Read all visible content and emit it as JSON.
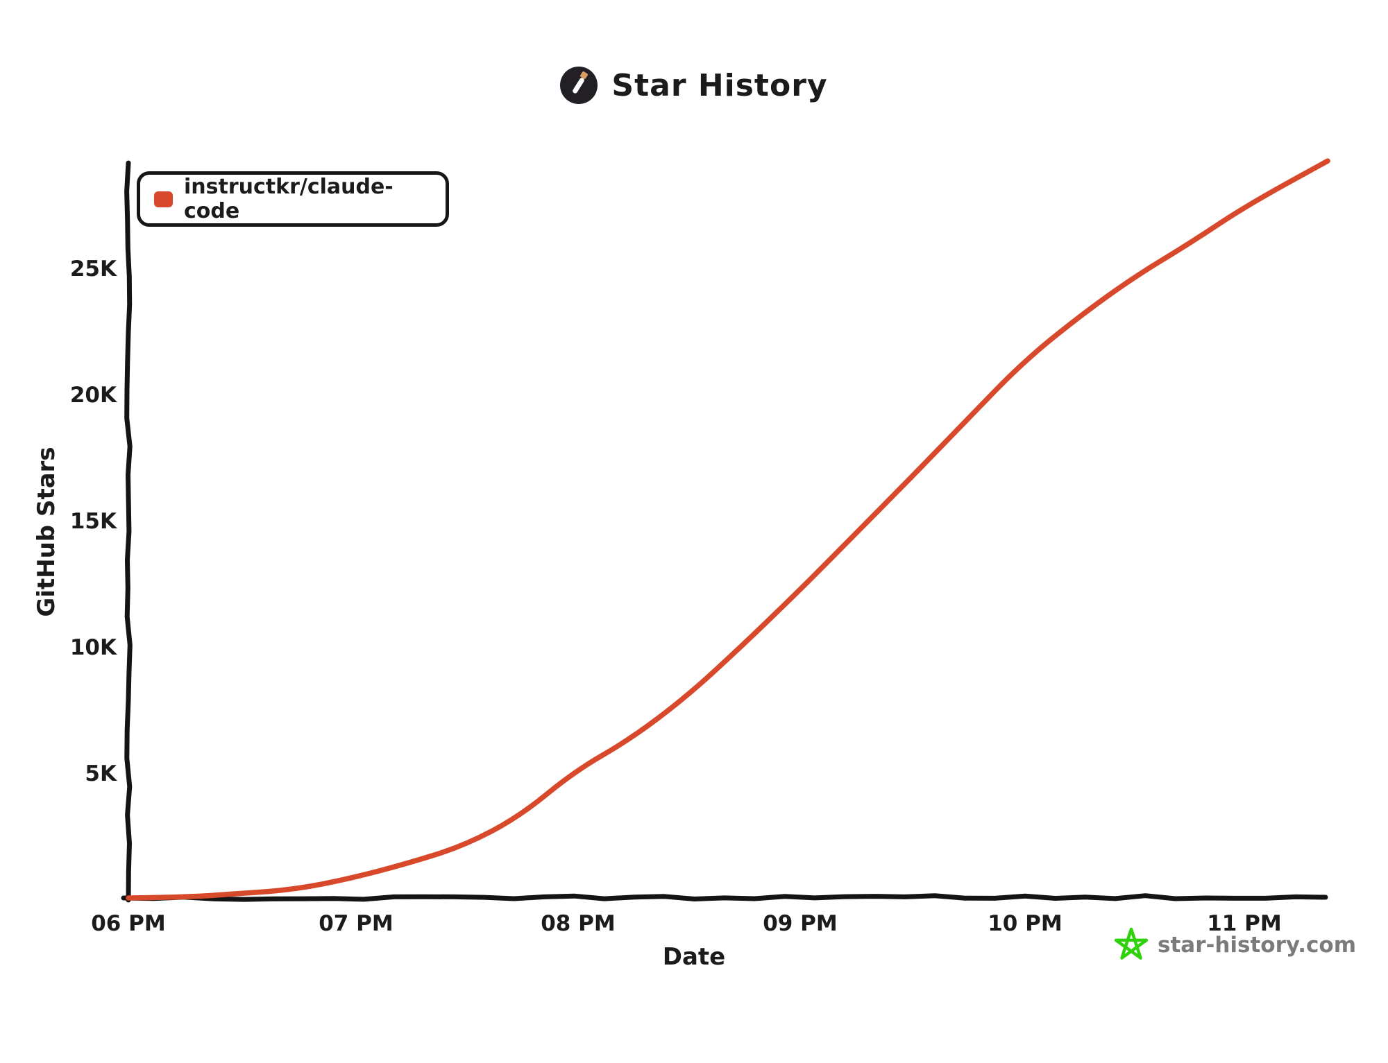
{
  "header": {
    "title": "Star History",
    "logo_icon": "pencil-wand-icon",
    "logo_bg_color": "#232025",
    "logo_tip_color": "#d99e63"
  },
  "legend": {
    "series_label": "instructkr/claude-code",
    "marker_color": "#d8492b"
  },
  "axes": {
    "y_title": "GitHub Stars",
    "x_title": "Date"
  },
  "watermark": {
    "text": "star-history.com",
    "star_icon_color": "#2ed10a",
    "text_color": "#7b7b7b"
  },
  "chart_data": {
    "type": "line",
    "title": "Star History",
    "xlabel": "Date",
    "ylabel": "GitHub Stars",
    "grid": false,
    "legend_position": "top-left",
    "x_tick_labels": [
      "06 PM",
      "07 PM",
      "08 PM",
      "09 PM",
      "10 PM",
      "11 PM"
    ],
    "y_tick_labels": [
      "5K",
      "10K",
      "15K",
      "20K",
      "25K"
    ],
    "y_tick_values": [
      5000,
      10000,
      15000,
      20000,
      25000
    ],
    "ylim": [
      0,
      29500
    ],
    "x_unit": "minutes after 06 PM",
    "xlim_minutes": [
      0,
      322
    ],
    "series": [
      {
        "name": "instructkr/claude-code",
        "color": "#d8492b",
        "points_minutes_stars": [
          [
            0,
            0
          ],
          [
            15,
            50
          ],
          [
            30,
            150
          ],
          [
            45,
            380
          ],
          [
            60,
            800
          ],
          [
            75,
            1400
          ],
          [
            90,
            2100
          ],
          [
            105,
            3200
          ],
          [
            120,
            5000
          ],
          [
            135,
            6300
          ],
          [
            150,
            8000
          ],
          [
            165,
            10000
          ],
          [
            180,
            12200
          ],
          [
            195,
            14400
          ],
          [
            210,
            16600
          ],
          [
            225,
            18900
          ],
          [
            240,
            21200
          ],
          [
            255,
            23000
          ],
          [
            270,
            24600
          ],
          [
            285,
            26000
          ],
          [
            300,
            27400
          ],
          [
            322,
            29200
          ]
        ]
      }
    ]
  }
}
